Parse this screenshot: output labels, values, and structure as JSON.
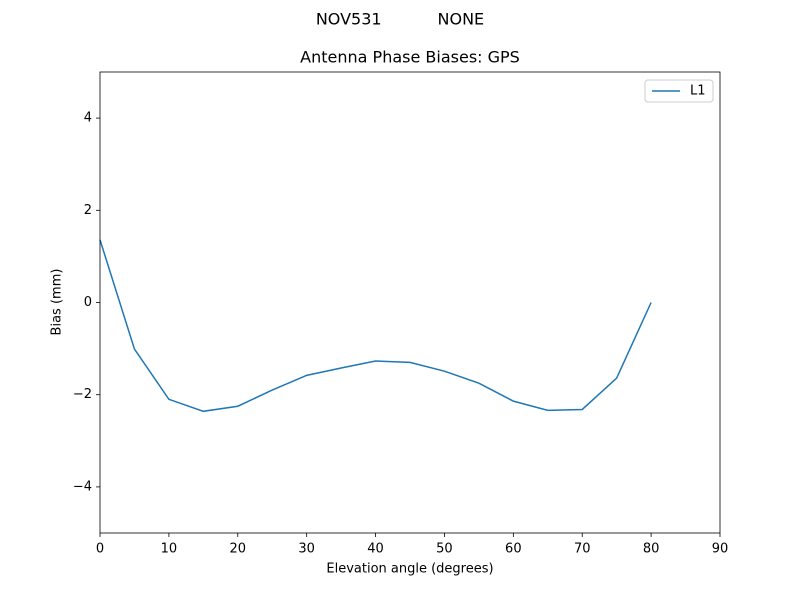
{
  "chart_data": {
    "type": "line",
    "suptitle": "NOV531           NONE",
    "title": "Antenna Phase Biases: GPS",
    "x_label": "Elevation angle (degrees)",
    "y_label": "Bias (mm)",
    "x": [
      0,
      5,
      10,
      15,
      20,
      25,
      30,
      35,
      40,
      45,
      50,
      55,
      60,
      65,
      70,
      75,
      80
    ],
    "series": [
      {
        "name": "L1",
        "color": "#1f77b4",
        "values": [
          1.36,
          -1.01,
          -2.1,
          -2.36,
          -2.25,
          -1.9,
          -1.58,
          -1.42,
          -1.27,
          -1.3,
          -1.49,
          -1.75,
          -2.14,
          -2.34,
          -2.32,
          -1.64,
          0.0
        ]
      }
    ],
    "xlim": [
      0,
      90
    ],
    "xticks": [
      0,
      10,
      20,
      30,
      40,
      50,
      60,
      70,
      80,
      90
    ],
    "ylim": [
      -5,
      5
    ],
    "yticks": [
      {
        "value": -4,
        "label": "−4"
      },
      {
        "value": -2,
        "label": "−2"
      },
      0,
      2,
      4
    ],
    "legend": "upper right"
  }
}
